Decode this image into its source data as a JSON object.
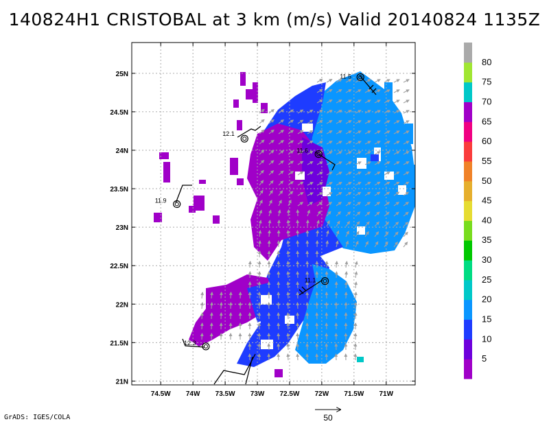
{
  "title": "140824H1 CRISTOBAL at 3 km (m/s) Valid 20140824 1135Z",
  "credit": "GrADS: IGES/COLA",
  "map": {
    "lon_range": [
      -74.95,
      -70.55
    ],
    "lat_range": [
      20.95,
      25.4
    ],
    "lon_ticks": [
      {
        "value": -74.5,
        "label": "74.5W"
      },
      {
        "value": -74.0,
        "label": "74W"
      },
      {
        "value": -73.5,
        "label": "73.5W"
      },
      {
        "value": -73.0,
        "label": "73W"
      },
      {
        "value": -72.5,
        "label": "72.5W"
      },
      {
        "value": -72.0,
        "label": "72W"
      },
      {
        "value": -71.5,
        "label": "71.5W"
      },
      {
        "value": -71.0,
        "label": "71W"
      }
    ],
    "lat_ticks": [
      {
        "value": 21.0,
        "label": "21N"
      },
      {
        "value": 21.5,
        "label": "21.5N"
      },
      {
        "value": 22.0,
        "label": "22N"
      },
      {
        "value": 22.5,
        "label": "22.5N"
      },
      {
        "value": 23.0,
        "label": "23N"
      },
      {
        "value": 23.5,
        "label": "23.5N"
      },
      {
        "value": 24.0,
        "label": "24N"
      },
      {
        "value": 24.5,
        "label": "24.5N"
      },
      {
        "value": 25.0,
        "label": "25N"
      }
    ],
    "grid": true,
    "stations": [
      {
        "label": "11.5",
        "lon": -71.4,
        "lat": 24.95
      },
      {
        "label": "12.1",
        "lon": -73.2,
        "lat": 24.15
      },
      {
        "label": "11.6",
        "lon": -72.05,
        "lat": 23.95
      },
      {
        "label": "11.9",
        "lon": -74.25,
        "lat": 23.3
      },
      {
        "label": "11.1",
        "lon": -71.95,
        "lat": 22.3
      },
      {
        "label": "12.3",
        "lon": -73.8,
        "lat": 21.45
      }
    ],
    "reference_vector": {
      "label": "50",
      "units": "m/s"
    }
  },
  "colorbar": {
    "labels": [
      "5",
      "10",
      "15",
      "20",
      "25",
      "30",
      "35",
      "40",
      "45",
      "50",
      "55",
      "60",
      "65",
      "70",
      "75",
      "80"
    ],
    "colors": [
      "#a000c8",
      "#6e00dc",
      "#1e3cff",
      "#0a96ff",
      "#00c8c8",
      "#00dc82",
      "#00c800",
      "#78dc1e",
      "#e6dc32",
      "#e6af2d",
      "#f08228",
      "#fa3c3c",
      "#f00082",
      "#a000c8",
      "#00c8c8",
      "#a0e632",
      "#aaaaaa"
    ]
  }
}
